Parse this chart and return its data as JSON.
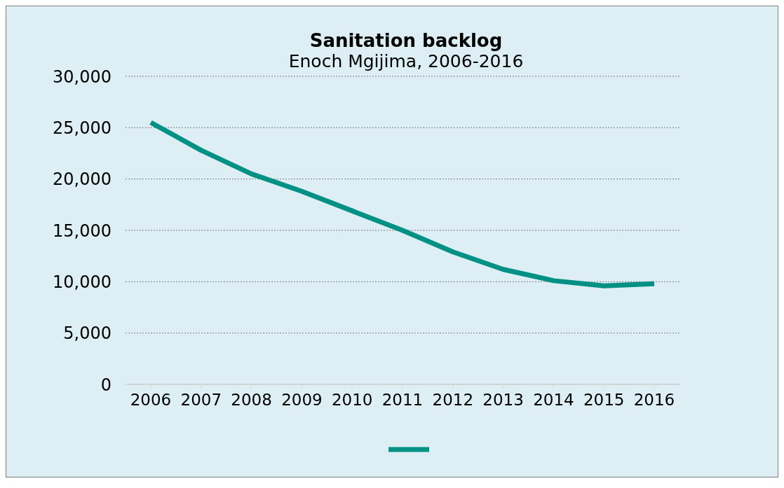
{
  "chart_data": {
    "type": "line",
    "title": "Sanitation backlog",
    "subtitle": "Enoch Mgijima, 2006-2016",
    "categories": [
      "2006",
      "2007",
      "2008",
      "2009",
      "2010",
      "2011",
      "2012",
      "2013",
      "2014",
      "2015",
      "2016"
    ],
    "series": [
      {
        "color": "#009084",
        "values": [
          25500,
          22800,
          20500,
          18800,
          16900,
          15000,
          12900,
          11200,
          10100,
          9600,
          9800
        ]
      }
    ],
    "ylim": [
      0,
      30000
    ],
    "yticks": [
      {
        "value": 0,
        "label": "0"
      },
      {
        "value": 5000,
        "label": "5,000"
      },
      {
        "value": 10000,
        "label": "10,000"
      },
      {
        "value": 15000,
        "label": "15,000"
      },
      {
        "value": 20000,
        "label": "20,000"
      },
      {
        "value": 25000,
        "label": "25,000"
      },
      {
        "value": 30000,
        "label": "30,000"
      }
    ],
    "grid": "y",
    "marker": "none",
    "line_style": "solid"
  }
}
